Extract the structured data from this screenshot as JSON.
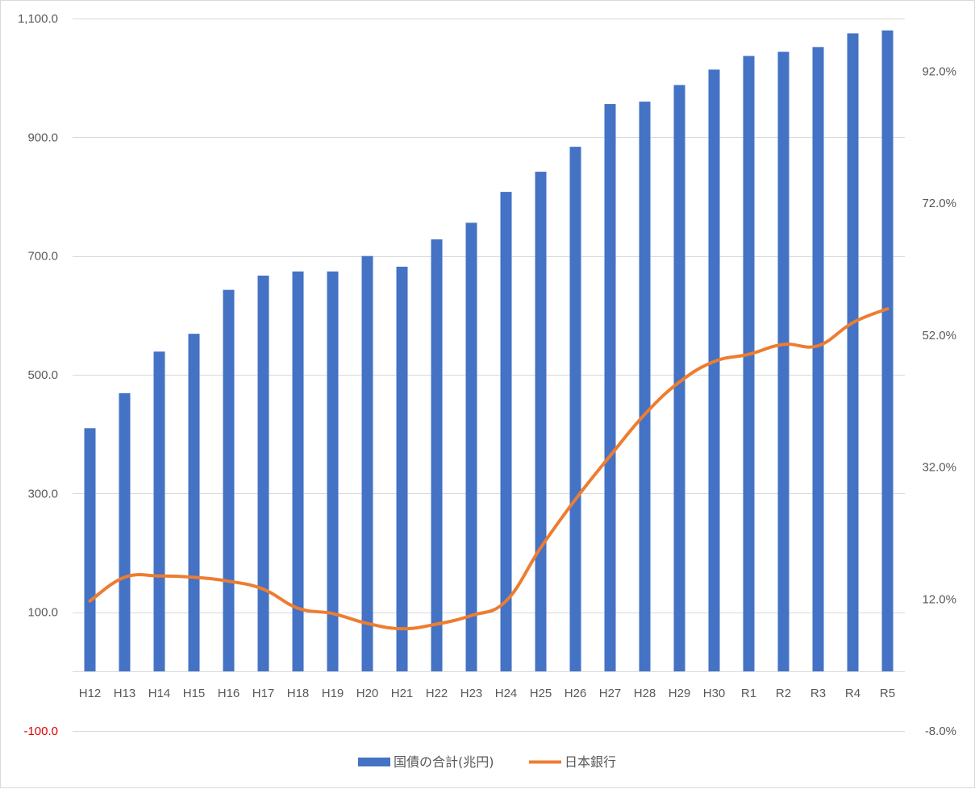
{
  "chart_data": {
    "type": "bar",
    "categories": [
      "H12",
      "H13",
      "H14",
      "H15",
      "H16",
      "H17",
      "H18",
      "H19",
      "H20",
      "H21",
      "H22",
      "H23",
      "H24",
      "H25",
      "H26",
      "H27",
      "H28",
      "H29",
      "H30",
      "R1",
      "R2",
      "R3",
      "R4",
      "R5"
    ],
    "series": [
      {
        "name": "国債の合計(兆円)",
        "type": "bar",
        "axis": "left",
        "color": "#4472c4",
        "values": [
          410,
          469,
          539,
          569,
          643,
          667,
          674,
          674,
          700,
          682,
          728,
          756,
          808,
          842,
          884,
          956,
          960,
          988,
          1014,
          1037,
          1044,
          1052,
          1075,
          1080
        ]
      },
      {
        "name": "日本銀行",
        "type": "line",
        "axis": "right",
        "color": "#ed7d31",
        "values": [
          11.7,
          15.3,
          15.5,
          15.3,
          14.7,
          13.5,
          10.6,
          9.8,
          8.3,
          7.5,
          8.2,
          9.5,
          11.7,
          19.8,
          27.1,
          33.7,
          40.0,
          44.9,
          48.0,
          49.1,
          50.6,
          50.4,
          53.9,
          56.0
        ]
      }
    ],
    "y_left": {
      "ylim": [
        -100,
        1100
      ],
      "ticks": [
        -100,
        100,
        300,
        500,
        700,
        900,
        1100
      ],
      "tick_labels": [
        "-100.0",
        "100.0",
        "300.0",
        "500.0",
        "700.0",
        "900.0",
        "1,100.0"
      ],
      "negative_label_color": "#ff0000"
    },
    "y_right": {
      "ylim": [
        -8,
        100
      ],
      "ticks": [
        -8,
        12,
        32,
        52,
        72,
        92
      ],
      "tick_labels": [
        "-8.0%",
        "12.0%",
        "32.0%",
        "52.0%",
        "72.0%",
        "92.0%"
      ]
    },
    "gridlines": true,
    "legend_position": "bottom"
  }
}
